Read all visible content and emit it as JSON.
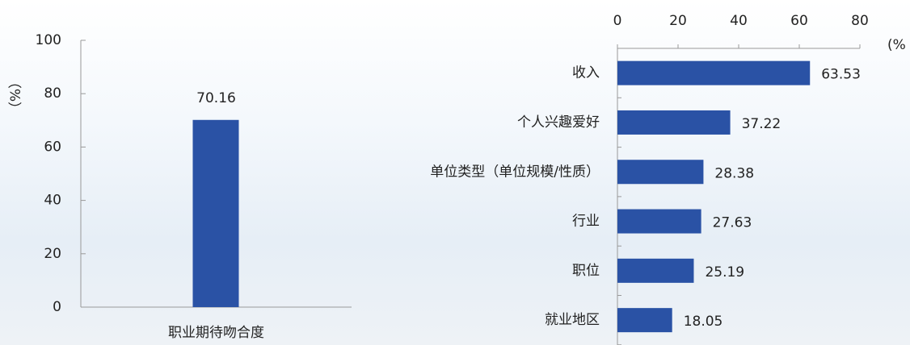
{
  "chart_data": [
    {
      "type": "bar",
      "categories": [
        "职业期待吻合度"
      ],
      "values": [
        70.16
      ],
      "color": "#2a52a5",
      "ylim": [
        0,
        100
      ],
      "yticks": [
        0,
        20,
        40,
        60,
        80,
        100
      ],
      "y_label": "（%）",
      "data_labels": true
    },
    {
      "type": "hbar",
      "categories": [
        "收入",
        "个人兴趣爱好",
        "单位类型（单位规模/性质）",
        "行业",
        "职位",
        "就业地区"
      ],
      "values": [
        63.53,
        37.22,
        28.38,
        27.63,
        25.19,
        18.05
      ],
      "color": "#2a52a5",
      "xlim": [
        0,
        80
      ],
      "xticks": [
        0,
        20,
        40,
        60,
        80
      ],
      "x_label": "(%",
      "data_labels": true
    }
  ]
}
